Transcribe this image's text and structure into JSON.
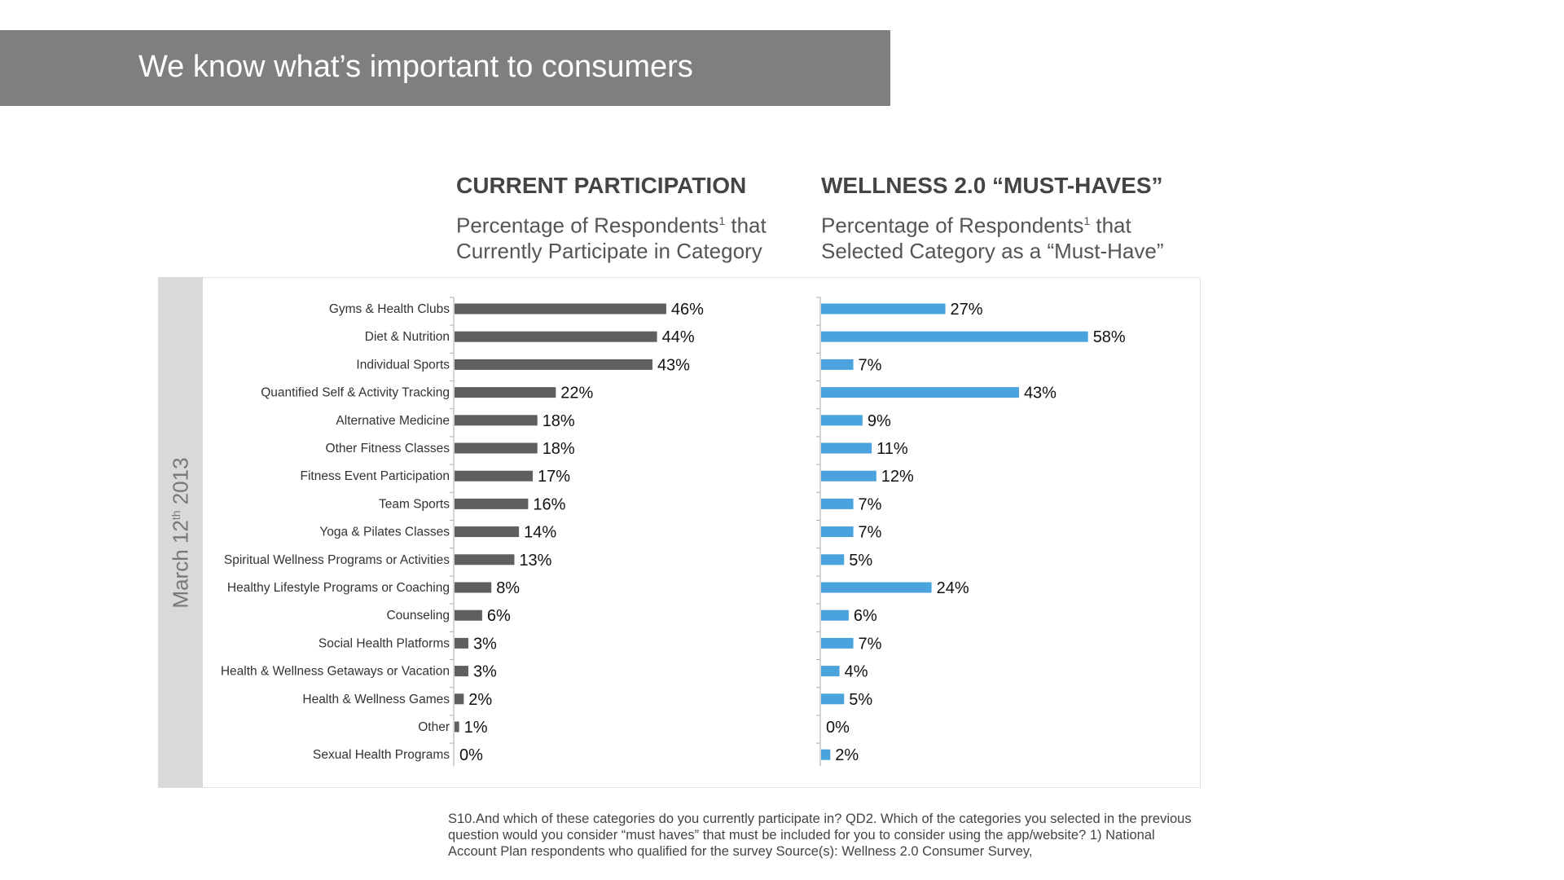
{
  "header": {
    "title": "We know what’s important to consumers"
  },
  "side_label": {
    "text_main": "March 12",
    "text_sup": "th",
    "text_year": " 2013"
  },
  "left_panel": {
    "title": "CURRENT PARTICIPATION",
    "subtitle_line1_a": "Percentage of Respondents",
    "subtitle_line1_sup": "1",
    "subtitle_line1_b": " that",
    "subtitle_line2": "Currently Participate in Category"
  },
  "right_panel": {
    "title": "WELLNESS 2.0 “MUST-HAVES”",
    "subtitle_line1_a": "Percentage of Respondents",
    "subtitle_line1_sup": "1",
    "subtitle_line1_b": " that",
    "subtitle_line2": "Selected Category as a “Must-Have”"
  },
  "colors": {
    "left_bar": "#5f5f5f",
    "right_bar": "#4aa3dc",
    "axis": "#aaaaaa",
    "label": "#333333"
  },
  "chart_data": {
    "type": "bar",
    "orientation": "horizontal",
    "categories": [
      "Gyms & Health Clubs",
      "Diet & Nutrition",
      "Individual Sports",
      "Quantified Self & Activity Tracking",
      "Alternative Medicine",
      "Other Fitness Classes",
      "Fitness Event Participation",
      "Team Sports",
      "Yoga & Pilates Classes",
      "Spiritual Wellness Programs or Activities",
      "Healthy Lifestyle Programs or Coaching",
      "Counseling",
      "Social Health Platforms",
      "Health & Wellness Getaways or Vacation",
      "Health & Wellness Games",
      "Other",
      "Sexual Health Programs"
    ],
    "series": [
      {
        "name": "CURRENT PARTICIPATION",
        "values": [
          46,
          44,
          43,
          22,
          18,
          18,
          17,
          16,
          14,
          13,
          8,
          6,
          3,
          3,
          2,
          1,
          0
        ],
        "labels": [
          "46%",
          "44%",
          "43%",
          "22%",
          "18%",
          "18%",
          "17%",
          "16%",
          "14%",
          "13%",
          "8%",
          "6%",
          "3%",
          "3%",
          "2%",
          "1%",
          "0%"
        ]
      },
      {
        "name": "WELLNESS 2.0 “MUST-HAVES”",
        "values": [
          27,
          58,
          7,
          43,
          9,
          11,
          12,
          7,
          7,
          5,
          24,
          6,
          7,
          4,
          5,
          0,
          2
        ],
        "labels": [
          "27%",
          "58%",
          "7%",
          "43%",
          "9%",
          "11%",
          "12%",
          "7%",
          "7%",
          "5%",
          "24%",
          "6%",
          "7%",
          "4%",
          "5%",
          "0%",
          "2%"
        ]
      }
    ],
    "unit": "%",
    "xlim": [
      0,
      100
    ]
  },
  "footnote": {
    "line1": "S10.And which of these categories do you currently participate in? QD2. Which of the categories you selected in the previous",
    "line2": "question would you consider “must haves” that must be included for you to consider using the app/website? 1) National",
    "line3": "Account Plan respondents who qualified for the survey Source(s): Wellness 2.0 Consumer Survey,"
  }
}
